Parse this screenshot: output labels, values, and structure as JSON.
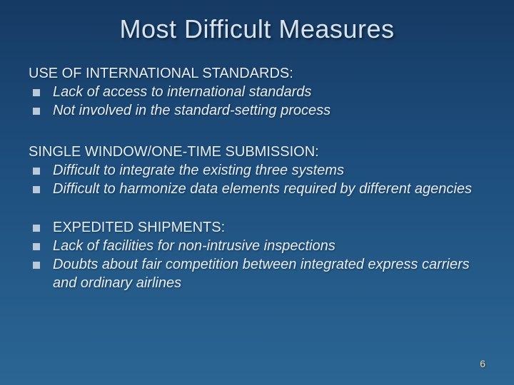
{
  "colors": {
    "bg_top": "#163a63",
    "bg_mid": "#1d4d7c",
    "bg_bottom": "#2b6694",
    "title_color": "#d7e3ee",
    "body_color": "#e6edf4",
    "bullet_color": "#b9c9da",
    "pagenum_color": "#f2d79a"
  },
  "typography": {
    "title_fontsize": 36,
    "body_fontsize": 20,
    "pagenum_fontsize": 14,
    "title_family": "Arial",
    "body_family": "Verdana"
  },
  "title": "Most Difficult Measures",
  "sections": [
    {
      "heading": "USE OF INTERNATIONAL STANDARDS:",
      "heading_as_bullet": false,
      "bullets": [
        "Lack of access to international standards",
        "Not involved in the standard-setting process"
      ]
    },
    {
      "heading": "SINGLE WINDOW/ONE-TIME SUBMISSION:",
      "heading_as_bullet": false,
      "bullets": [
        "Difficult to integrate the existing three systems",
        "Difficult to harmonize data elements required by different agencies"
      ]
    },
    {
      "heading": "EXPEDITED SHIPMENTS:",
      "heading_as_bullet": true,
      "bullets": [
        "Lack of facilities for non-intrusive inspections",
        "Doubts about fair competition between integrated express carriers and ordinary airlines"
      ]
    }
  ],
  "page_number": "6"
}
